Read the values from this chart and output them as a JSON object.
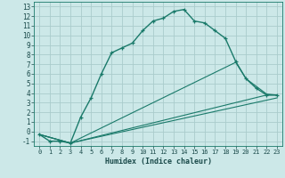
{
  "xlabel": "Humidex (Indice chaleur)",
  "bg_color": "#cce8e8",
  "grid_color": "#aacccc",
  "line_color": "#1a7a6a",
  "xlim": [
    -0.5,
    23.5
  ],
  "ylim": [
    -1.5,
    13.5
  ],
  "xticks": [
    0,
    1,
    2,
    3,
    4,
    5,
    6,
    7,
    8,
    9,
    10,
    11,
    12,
    13,
    14,
    15,
    16,
    17,
    18,
    19,
    20,
    21,
    22,
    23
  ],
  "yticks": [
    -1,
    0,
    1,
    2,
    3,
    4,
    5,
    6,
    7,
    8,
    9,
    10,
    11,
    12,
    13
  ],
  "series1_x": [
    0,
    1,
    2,
    3,
    4,
    5,
    6,
    7,
    8,
    9,
    10,
    11,
    12,
    13,
    14,
    15,
    16,
    17,
    18,
    19,
    20,
    21,
    22,
    23
  ],
  "series1_y": [
    -0.3,
    -1.0,
    -1.0,
    -1.2,
    1.5,
    3.5,
    6.0,
    8.2,
    8.7,
    9.2,
    10.5,
    11.5,
    11.8,
    12.5,
    12.7,
    11.5,
    11.3,
    10.5,
    9.7,
    7.3,
    5.5,
    4.5,
    3.8,
    3.8
  ],
  "series2_x": [
    0,
    3,
    22,
    23
  ],
  "series2_y": [
    -0.3,
    -1.2,
    3.8,
    3.8
  ],
  "series3_x": [
    0,
    3,
    23
  ],
  "series3_y": [
    -0.3,
    -1.2,
    3.5
  ],
  "series4_x": [
    0,
    3,
    19,
    20,
    22,
    23
  ],
  "series4_y": [
    -0.3,
    -1.2,
    7.2,
    5.5,
    3.9,
    3.8
  ]
}
